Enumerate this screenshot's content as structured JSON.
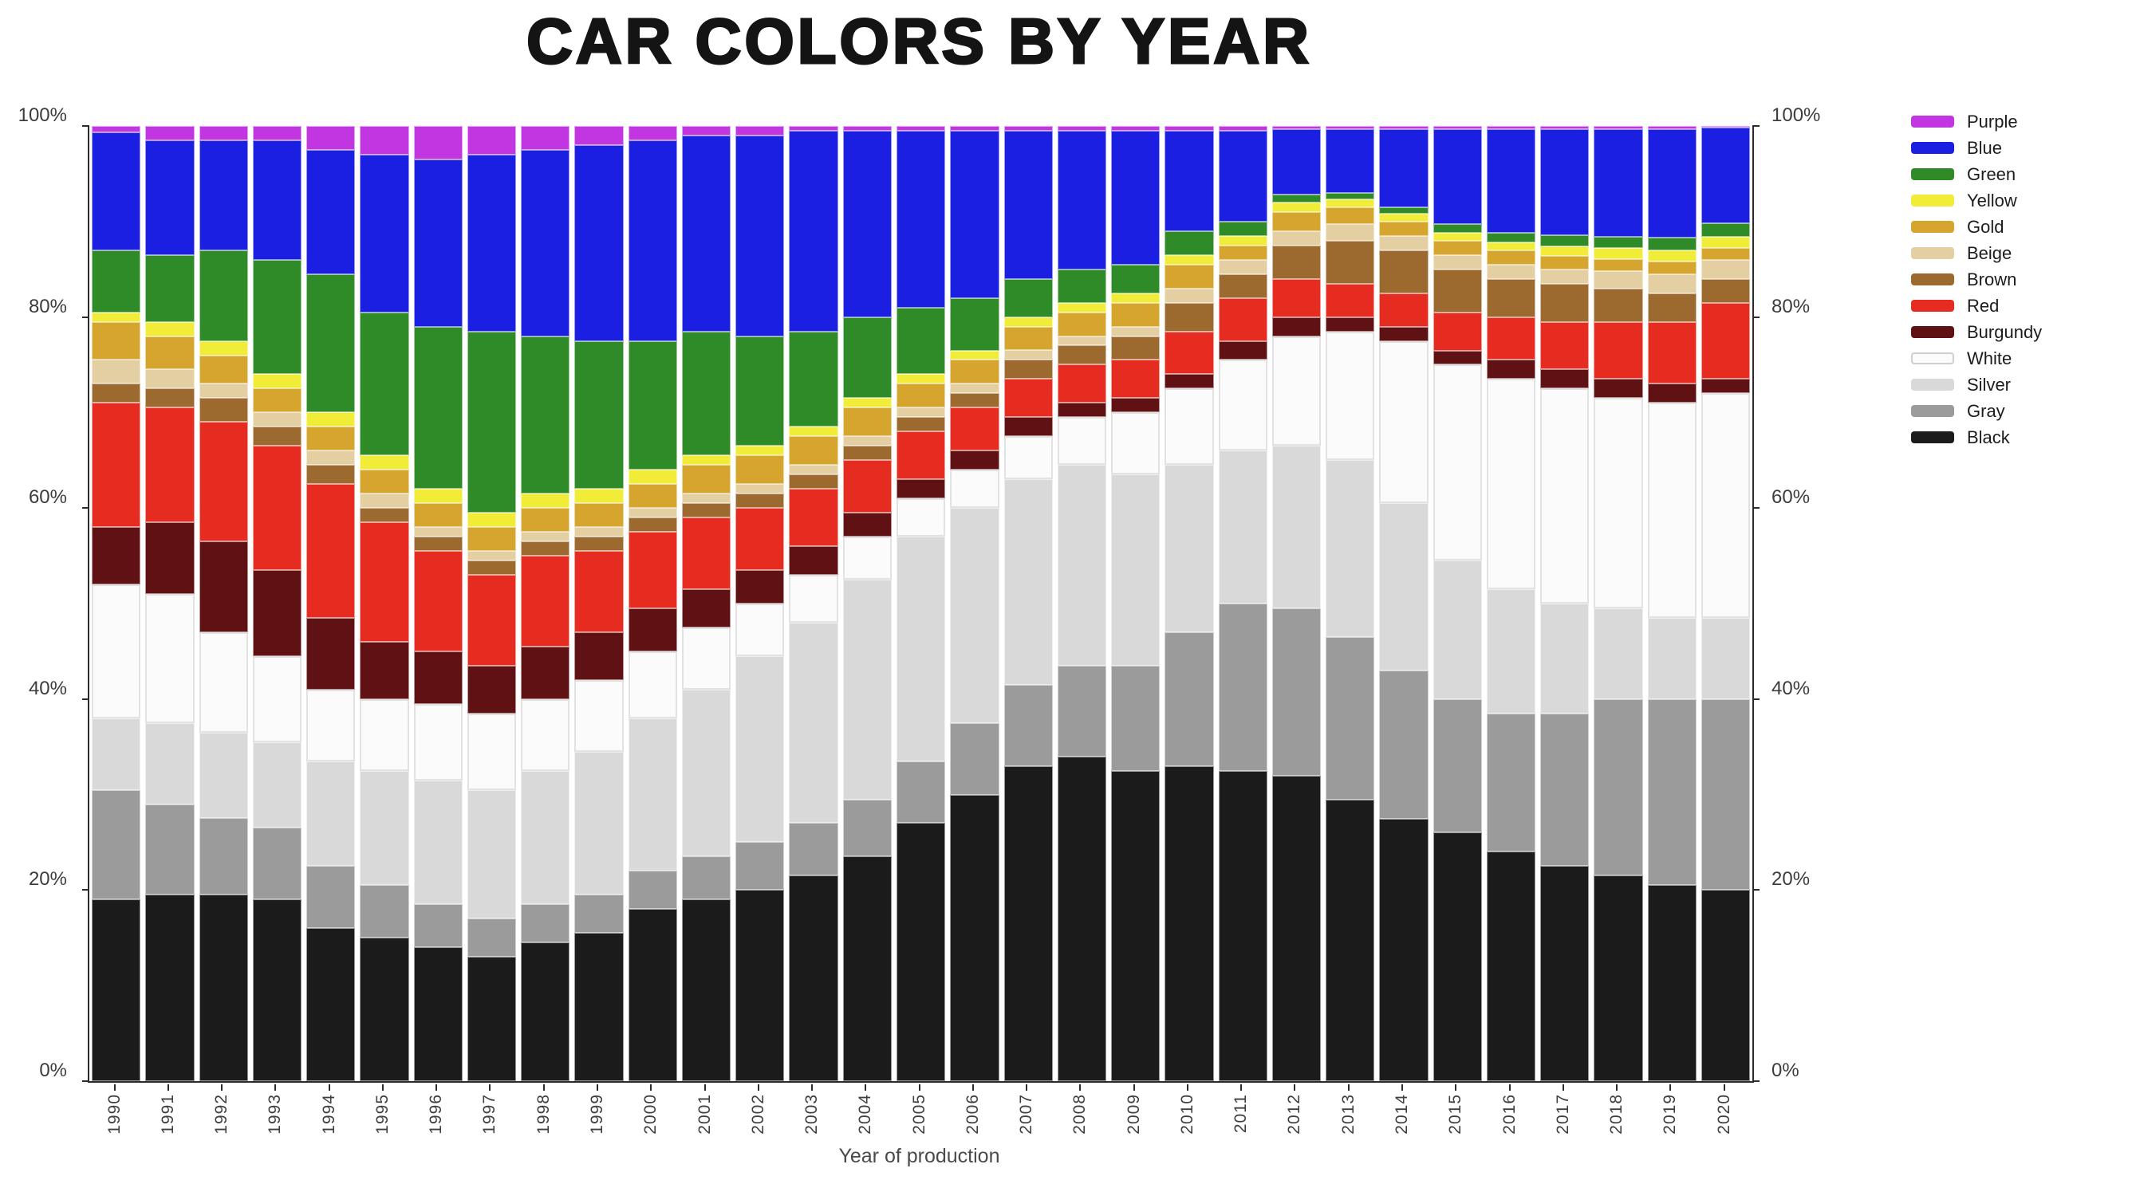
{
  "title": "CAR COLORS BY YEAR",
  "x_axis_label": "Year of production",
  "y_axis": {
    "left_ticks": [
      "0%",
      "20%",
      "40%",
      "60%",
      "80%",
      "100%"
    ],
    "right_ticks": [
      "0%",
      "20%",
      "40%",
      "60%",
      "80%",
      "100%"
    ]
  },
  "colors": {
    "axis_text": "#3c3c3c",
    "title_text": "#141414",
    "spine": "#2b2b2b"
  },
  "chart_data": {
    "type": "bar",
    "stacked": true,
    "units": "percent",
    "title": "CAR COLORS BY YEAR",
    "xlabel": "Year of production",
    "ylabel": "",
    "ylim": [
      0,
      100
    ],
    "grid": false,
    "legend_position": "right",
    "categories": [
      1990,
      1991,
      1992,
      1993,
      1994,
      1995,
      1996,
      1997,
      1998,
      1999,
      2000,
      2001,
      2002,
      2003,
      2004,
      2005,
      2006,
      2007,
      2008,
      2009,
      2010,
      2011,
      2012,
      2013,
      2014,
      2015,
      2016,
      2017,
      2018,
      2019,
      2020
    ],
    "stack_order_bottom_to_top": [
      "Black",
      "Gray",
      "Silver",
      "White",
      "Burgundy",
      "Red",
      "Brown",
      "Beige",
      "Gold",
      "Yellow",
      "Green",
      "Blue",
      "Purple"
    ],
    "series": [
      {
        "name": "Black",
        "color": "#1b1b1b",
        "values": [
          19,
          19.5,
          19.5,
          19,
          16,
          15,
          14,
          13,
          14.5,
          15.5,
          18,
          19,
          20,
          21.5,
          23.5,
          27,
          30,
          33,
          34,
          32.5,
          33,
          32.5,
          32,
          29.5,
          27.5,
          26,
          24,
          22.5,
          21.5,
          20.5,
          20
        ]
      },
      {
        "name": "Gray",
        "color": "#9b9b9b",
        "values": [
          11.5,
          9.5,
          8,
          7.5,
          6.5,
          5.5,
          4.5,
          4,
          4,
          4,
          4,
          4.5,
          5,
          5.5,
          6,
          6.5,
          7.5,
          8.5,
          9.5,
          11,
          14,
          17.5,
          17.5,
          17,
          15.5,
          14,
          14.5,
          16,
          18.5,
          19.5,
          20
        ]
      },
      {
        "name": "Silver",
        "color": "#d9d9d9",
        "values": [
          7.5,
          8.5,
          9,
          9,
          11,
          12,
          13,
          13.5,
          14,
          15,
          16,
          17.5,
          19.5,
          21,
          23,
          23.5,
          22.5,
          21.5,
          21,
          20,
          17.5,
          16,
          17,
          18.5,
          17.5,
          14.5,
          13,
          11.5,
          9.5,
          8.5,
          8.5
        ]
      },
      {
        "name": "White",
        "color": "#fbfbfb",
        "values": [
          14,
          13.5,
          10.5,
          9,
          7.5,
          7.5,
          8,
          8,
          7.5,
          7.5,
          7,
          6.5,
          5.5,
          5,
          4.5,
          4,
          4,
          4.5,
          5,
          6.5,
          8,
          9.5,
          11.5,
          13.5,
          17,
          20.5,
          22,
          22.5,
          22,
          22.5,
          23.5
        ]
      },
      {
        "name": "Burgundy",
        "color": "#5f1113",
        "values": [
          6,
          7.5,
          9.5,
          9,
          7.5,
          6,
          5.5,
          5,
          5.5,
          5,
          4.5,
          4,
          3.5,
          3,
          2.5,
          2,
          2,
          2,
          1.5,
          1.5,
          1.5,
          2,
          2,
          1.5,
          1.5,
          1.5,
          2,
          2,
          2,
          2,
          1.5
        ]
      },
      {
        "name": "Red",
        "color": "#e62b20",
        "values": [
          13,
          12,
          12.5,
          13,
          14,
          12.5,
          10.5,
          9.5,
          9.5,
          8.5,
          8,
          7.5,
          6.5,
          6,
          5.5,
          5,
          4.5,
          4,
          4,
          4,
          4.5,
          4.5,
          4,
          3.5,
          3.5,
          4,
          4.5,
          5,
          6,
          6.5,
          8
        ]
      },
      {
        "name": "Brown",
        "color": "#9c6a2f",
        "values": [
          2,
          2,
          2.5,
          2,
          2,
          1.5,
          1.5,
          1.5,
          1.5,
          1.5,
          1.5,
          1.5,
          1.5,
          1.5,
          1.5,
          1.5,
          1.5,
          2,
          2,
          2.5,
          3,
          2.5,
          3.5,
          4.5,
          4.5,
          4.5,
          4,
          4,
          3.5,
          3,
          2.5
        ]
      },
      {
        "name": "Beige",
        "color": "#e3cfa2",
        "values": [
          2.5,
          2,
          1.5,
          1.5,
          1.5,
          1.5,
          1,
          1,
          1,
          1,
          1,
          1,
          1,
          1,
          1,
          1,
          1,
          1,
          1,
          1,
          1.5,
          1.5,
          1.5,
          1.7,
          1.5,
          1.5,
          1.5,
          1.5,
          1.8,
          2,
          2
        ]
      },
      {
        "name": "Gold",
        "color": "#d5a52e",
        "values": [
          4,
          3.5,
          3,
          2.5,
          2.5,
          2.5,
          2.5,
          2.5,
          2.5,
          2.5,
          2.5,
          3,
          3,
          3,
          3,
          2.5,
          2.5,
          2.5,
          2.5,
          2.5,
          2.5,
          1.5,
          2,
          1.8,
          1.5,
          1.5,
          1.5,
          1.4,
          1.3,
          1.3,
          1.2
        ]
      },
      {
        "name": "Yellow",
        "color": "#f1ec38",
        "values": [
          1,
          1.5,
          1.5,
          1.5,
          1.5,
          1.5,
          1.5,
          1.5,
          1.5,
          1.5,
          1.5,
          1,
          1,
          1,
          1,
          1,
          1,
          1,
          1,
          1,
          1,
          1,
          1,
          0.8,
          0.8,
          0.8,
          0.8,
          1,
          1.1,
          1.2,
          1.2
        ]
      },
      {
        "name": "Green",
        "color": "#2f8b27",
        "values": [
          6.5,
          7,
          9.5,
          12,
          14.5,
          15,
          17,
          19,
          16.5,
          15.5,
          13.5,
          13,
          11.5,
          10,
          8.5,
          7,
          5.5,
          4,
          3.5,
          3,
          2.5,
          1.5,
          0.8,
          0.7,
          0.7,
          0.9,
          1,
          1.2,
          1.2,
          1.3,
          1.4
        ]
      },
      {
        "name": "Blue",
        "color": "#1b1fe2",
        "values": [
          12.3,
          12,
          11.5,
          12.5,
          13,
          16.5,
          17.5,
          18.5,
          19.5,
          20.5,
          21,
          20.5,
          21,
          21,
          19.5,
          18.5,
          17.5,
          15.5,
          14.5,
          14,
          10.5,
          9.5,
          6.9,
          6.7,
          8.2,
          10,
          10.9,
          11.1,
          11.3,
          11.4,
          10
        ]
      },
      {
        "name": "Purple",
        "color": "#c136e0",
        "values": [
          0.7,
          1.5,
          1.5,
          1.5,
          2.5,
          3,
          3.5,
          3,
          2.5,
          2,
          1.5,
          1,
          1,
          0.5,
          0.5,
          0.5,
          0.5,
          0.5,
          0.5,
          0.5,
          0.5,
          0.5,
          0.3,
          0.3,
          0.3,
          0.3,
          0.3,
          0.3,
          0.3,
          0.3,
          0.2
        ]
      }
    ]
  }
}
